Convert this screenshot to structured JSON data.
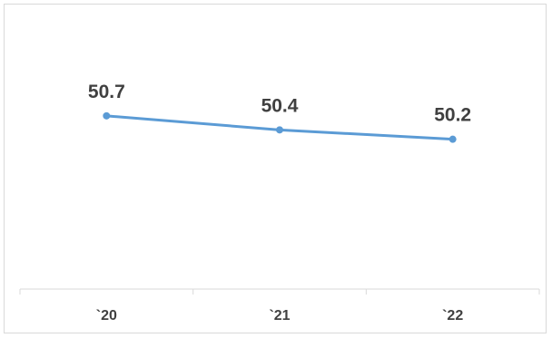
{
  "chart_data": {
    "type": "line",
    "categories": [
      "`20",
      "`21",
      "`22"
    ],
    "series": [
      {
        "values": [
          50.7,
          50.4,
          50.2
        ],
        "color": "#5b9bd5"
      }
    ],
    "data_labels": [
      "50.7",
      "50.4",
      "50.2"
    ],
    "title": "",
    "xlabel": "",
    "ylabel": "",
    "ylim": [
      47.0,
      52.4
    ],
    "grid": false,
    "legend": "none"
  }
}
